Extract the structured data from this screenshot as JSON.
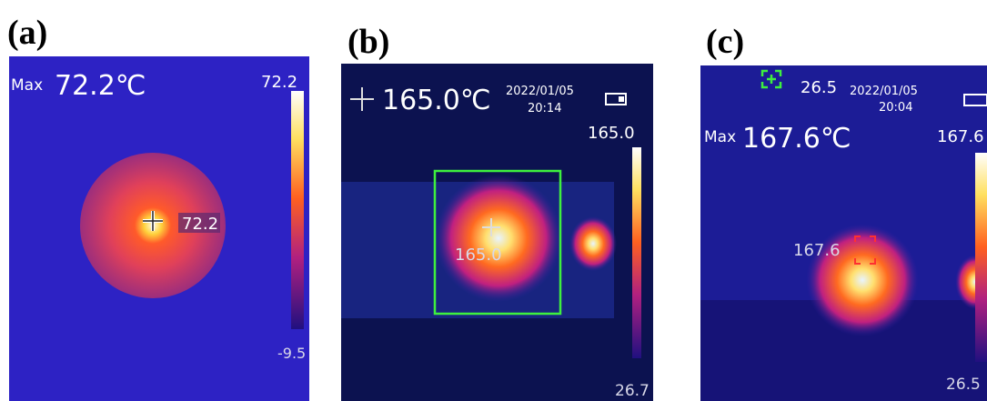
{
  "panels": [
    {
      "label": "(a)",
      "max_label": "Max",
      "reading": "72.2℃",
      "scale_max": "72.2",
      "spot": "72.2",
      "scale_min": "-9.5"
    },
    {
      "label": "(b)",
      "reading": "165.0℃",
      "date": "2022/01/05",
      "time": "20:14",
      "scale_max": "165.0",
      "spot": "165.0",
      "scale_min": "26.7"
    },
    {
      "label": "(c)",
      "ambient": "26.5",
      "date": "2022/01/05",
      "time": "20:04",
      "max_label": "Max",
      "reading": "167.6℃",
      "scale_max": "167.6",
      "spot": "167.6",
      "scale_min": "26.5"
    }
  ]
}
